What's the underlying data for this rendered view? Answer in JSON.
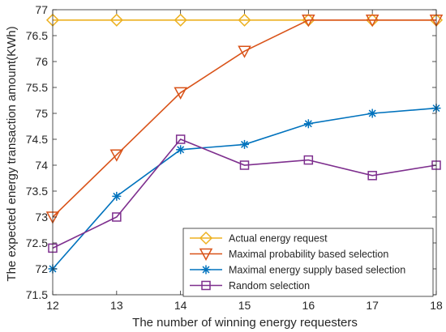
{
  "chart_data": {
    "type": "line",
    "title": "",
    "xlabel": "The number of winning energy requesters",
    "ylabel": "The expected energy transaction amount(KWh)",
    "x": [
      12,
      13,
      14,
      15,
      16,
      17,
      18
    ],
    "xlim": [
      12,
      18
    ],
    "ylim": [
      71.5,
      77
    ],
    "xticks": [
      12,
      13,
      14,
      15,
      16,
      17,
      18
    ],
    "yticks": [
      71.5,
      72,
      72.5,
      73,
      73.5,
      74,
      74.5,
      75,
      75.5,
      76,
      76.5,
      77
    ],
    "grid": false,
    "legend_position": "bottom-right",
    "series": [
      {
        "name": "Actual energy request",
        "marker": "diamond",
        "color": "#EDB120",
        "values": [
          76.8,
          76.8,
          76.8,
          76.8,
          76.8,
          76.8,
          76.8
        ]
      },
      {
        "name": "Maximal probability based selection",
        "marker": "triangle-down",
        "color": "#D95319",
        "values": [
          73.0,
          74.2,
          75.4,
          76.2,
          76.8,
          76.8,
          76.8
        ]
      },
      {
        "name": "Maximal energy supply based selection",
        "marker": "asterisk",
        "color": "#0072BD",
        "values": [
          72.0,
          73.4,
          74.3,
          74.4,
          74.8,
          75.0,
          75.1
        ]
      },
      {
        "name": "Random selection",
        "marker": "square",
        "color": "#7E2F8E",
        "values": [
          72.4,
          73.0,
          74.5,
          74.0,
          74.1,
          73.8,
          74.0
        ]
      }
    ]
  }
}
